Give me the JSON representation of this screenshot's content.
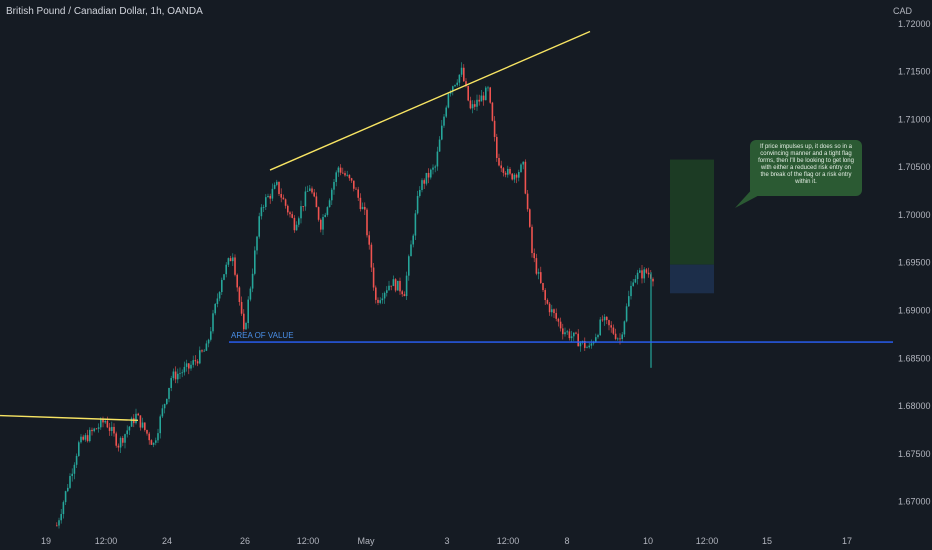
{
  "header": {
    "title": "British Pound / Canadian Dollar, 1h, OANDA",
    "currency": "CAD"
  },
  "annotations": {
    "callout": "If price impulses up, it does so in a convincing manner and a tight flag forms, then I'll be looking to get long with either a reduced risk entry on the break of the flag or a risk entry within it.",
    "area_of_value": "AREA OF VALUE"
  },
  "colors": {
    "background": "#151b23",
    "up_candle": "#26a69a",
    "down_candle": "#ef5350",
    "trendline": "#f7e463",
    "support_line": "#2962ff",
    "target_zone": "#1c3b24",
    "stop_zone": "#1c2e4a",
    "callout": "#2b5a33"
  },
  "chart_data": {
    "type": "candlestick",
    "title": "British Pound / Canadian Dollar, 1h, OANDA",
    "y_axis_label": "CAD",
    "y_ticks": [
      1.72,
      1.715,
      1.71,
      1.705,
      1.7,
      1.695,
      1.69,
      1.685,
      1.68,
      1.675,
      1.67
    ],
    "y_tick_labels": [
      "1.72000",
      "1.71500",
      "1.71000",
      "1.70500",
      "1.70000",
      "1.69500",
      "1.69000",
      "1.68500",
      "1.68000",
      "1.67500",
      "1.67000"
    ],
    "x_tick_labels": [
      "19",
      "12:00",
      "24",
      "26",
      "12:00",
      "May",
      "3",
      "12:00",
      "8",
      "10",
      "12:00",
      "15",
      "17"
    ],
    "ylim": [
      1.6665,
      1.7225
    ],
    "price_path": [
      [
        0,
        1.6675
      ],
      [
        10,
        1.676
      ],
      [
        22,
        1.6785
      ],
      [
        28,
        1.676
      ],
      [
        36,
        1.679
      ],
      [
        44,
        1.676
      ],
      [
        52,
        1.683
      ],
      [
        60,
        1.684
      ],
      [
        68,
        1.686
      ],
      [
        75,
        1.6935
      ],
      [
        80,
        1.696
      ],
      [
        85,
        1.6875
      ],
      [
        93,
        1.701
      ],
      [
        100,
        1.703
      ],
      [
        108,
        1.699
      ],
      [
        115,
        1.703
      ],
      [
        120,
        1.699
      ],
      [
        128,
        1.705
      ],
      [
        135,
        1.703
      ],
      [
        140,
        1.7
      ],
      [
        145,
        1.691
      ],
      [
        152,
        1.693
      ],
      [
        158,
        1.692
      ],
      [
        165,
        1.703
      ],
      [
        172,
        1.705
      ],
      [
        178,
        1.713
      ],
      [
        184,
        1.715
      ],
      [
        188,
        1.711
      ],
      [
        196,
        1.713
      ],
      [
        200,
        1.706
      ],
      [
        206,
        1.704
      ],
      [
        212,
        1.705
      ],
      [
        216,
        1.696
      ],
      [
        222,
        1.691
      ],
      [
        230,
        1.688
      ],
      [
        236,
        1.687
      ],
      [
        242,
        1.686
      ],
      [
        248,
        1.689
      ],
      [
        252,
        1.688
      ],
      [
        256,
        1.687
      ],
      [
        262,
        1.6935
      ],
      [
        268,
        1.694
      ],
      [
        272,
        1.6935
      ]
    ],
    "series": [
      {
        "values": [
          [
            0,
            1.679
          ],
          [
            55,
            1.6785
          ]
        ]
      },
      {
        "values": [
          [
            93,
            1.7047
          ],
          [
            200,
            1.7192
          ]
        ]
      },
      {
        "values": [
          [
            94,
            1.6867
          ],
          [
            340,
            1.6867
          ]
        ]
      }
    ],
    "long_position": {
      "target": [
        1.6948,
        1.7058
      ],
      "stop": [
        1.6918,
        1.6948
      ]
    }
  }
}
